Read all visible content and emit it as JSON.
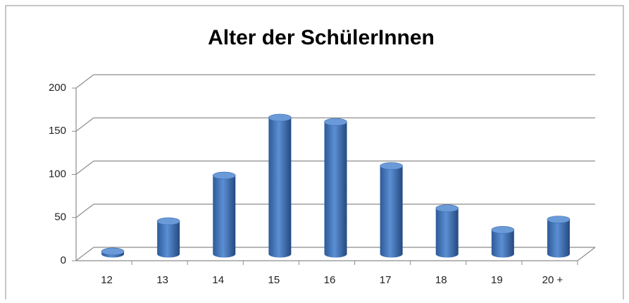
{
  "chart_data": {
    "type": "bar3d",
    "title": "Alter der SchülerInnen",
    "categories": [
      "12",
      "13",
      "14",
      "15",
      "16",
      "17",
      "18",
      "19",
      "20 +"
    ],
    "values": [
      3,
      38,
      91,
      158,
      153,
      102,
      53,
      28,
      40
    ],
    "color": "#4f81bd",
    "ylim": [
      0,
      200
    ],
    "yticks": [
      0,
      50,
      100,
      150,
      200
    ],
    "grid": true
  }
}
